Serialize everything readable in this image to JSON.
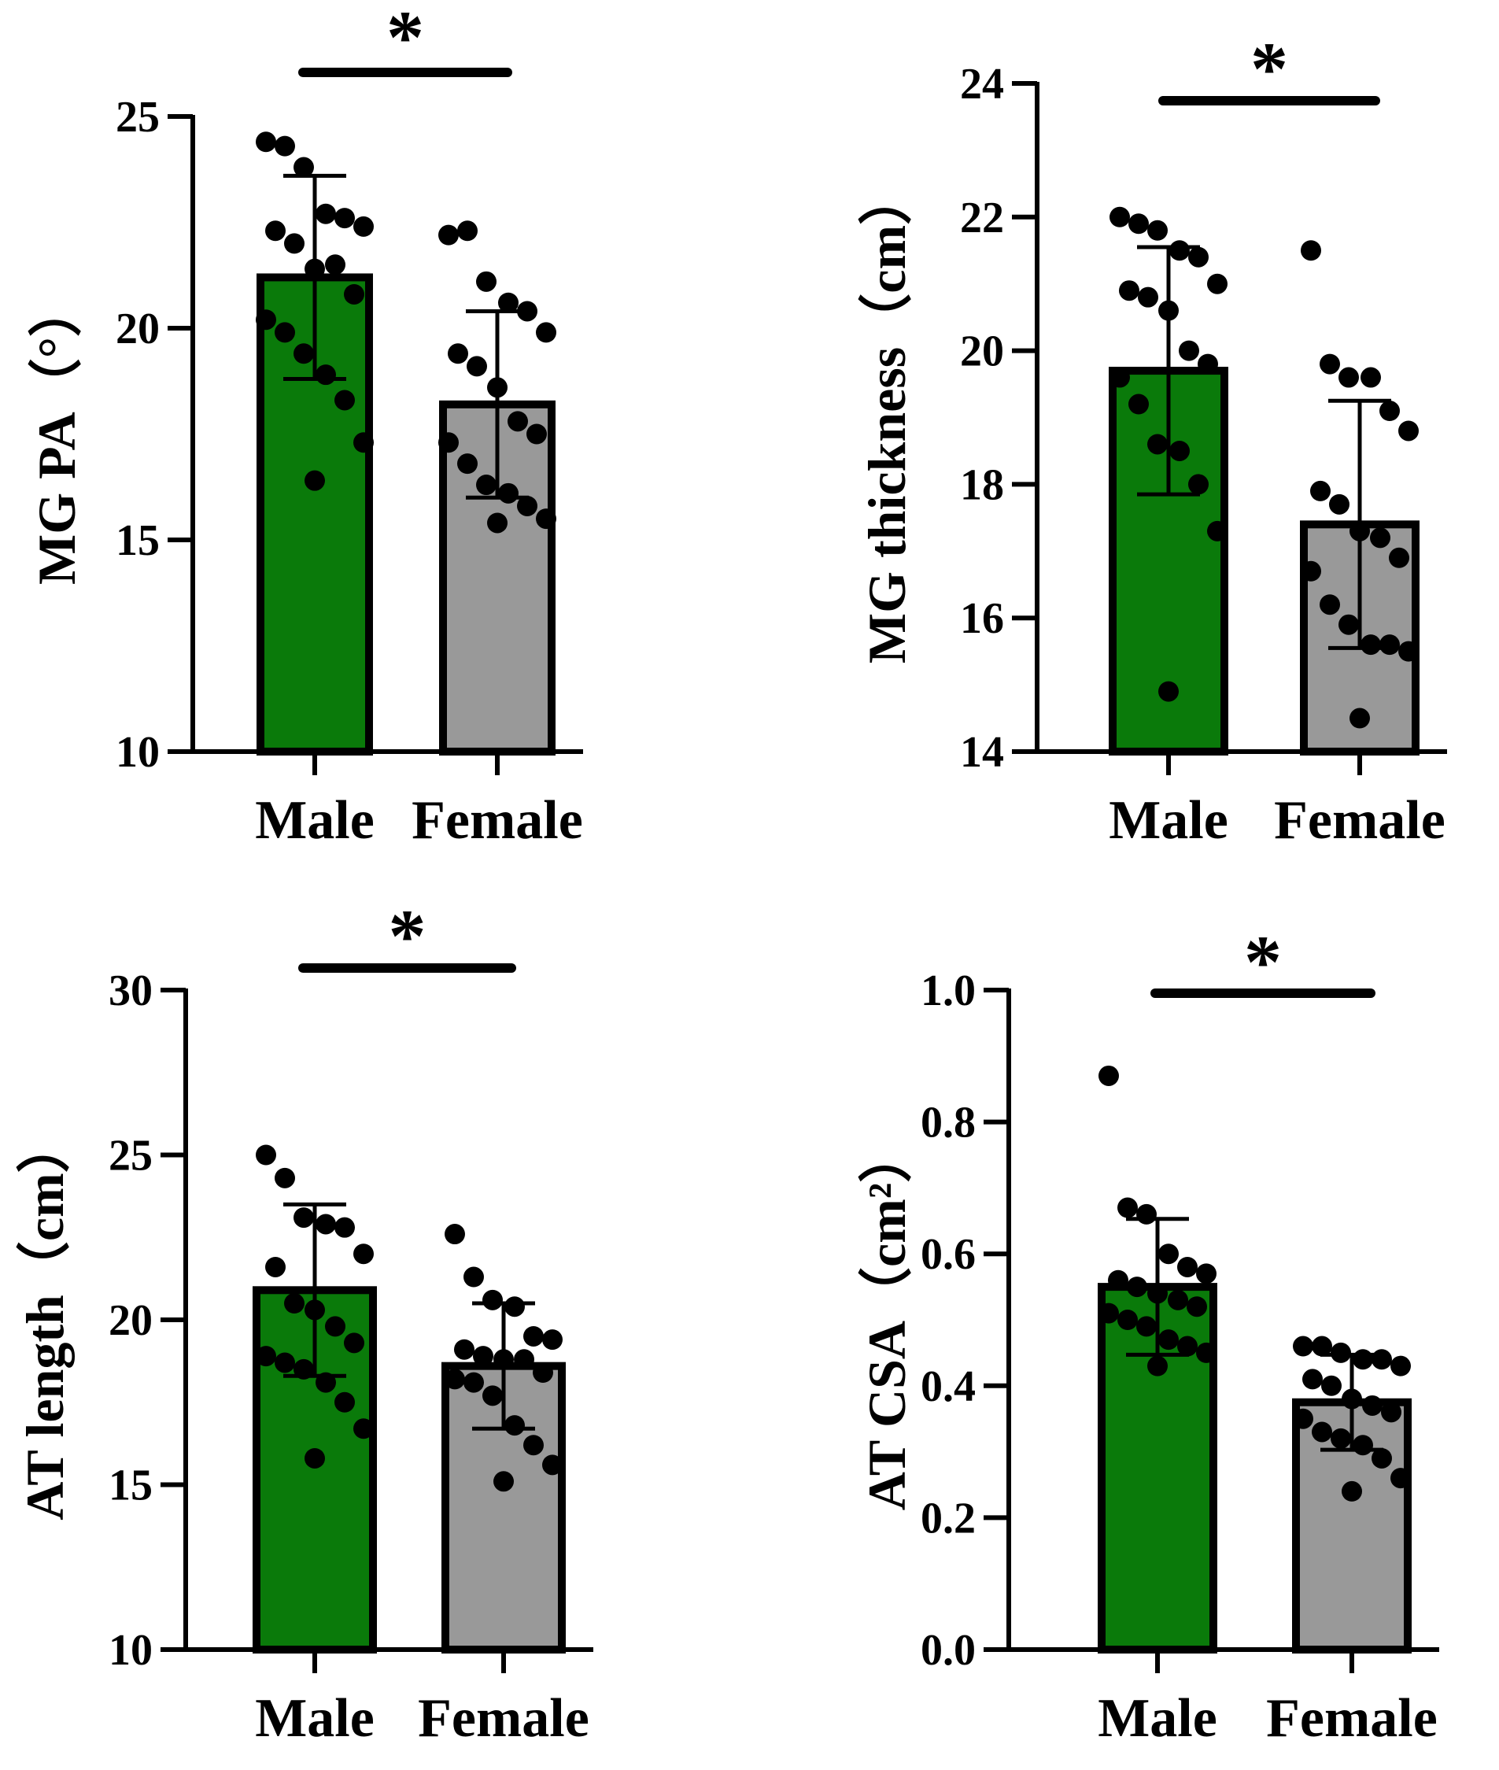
{
  "chart_data": [
    {
      "type": "bar",
      "categories": [
        "Male",
        "Female"
      ],
      "ylabel": "MG PA（°）",
      "ylim": [
        10,
        25
      ],
      "yticks": [
        "10",
        "15",
        "20",
        "25"
      ],
      "values": [
        21.2,
        18.2
      ],
      "error": [
        2.4,
        2.2
      ],
      "colors": [
        "#0a7a0a",
        "#999999"
      ],
      "significance": "*",
      "points": [
        [
          24.4,
          24.3,
          23.8,
          22.7,
          22.6,
          22.4,
          22.3,
          22.0,
          21.4,
          21.5,
          20.8,
          20.2,
          19.9,
          19.4,
          18.9,
          18.3,
          17.3,
          16.4
        ],
        [
          22.2,
          22.3,
          21.1,
          20.6,
          20.4,
          19.9,
          19.4,
          19.1,
          18.6,
          17.8,
          17.5,
          17.3,
          16.8,
          16.3,
          16.1,
          15.8,
          15.5,
          15.4
        ]
      ]
    },
    {
      "type": "bar",
      "categories": [
        "Male",
        "Female"
      ],
      "ylabel": "MG thickness（cm）",
      "ylim": [
        14,
        24
      ],
      "yticks": [
        "14",
        "16",
        "18",
        "20",
        "22",
        "24"
      ],
      "values": [
        19.7,
        17.4
      ],
      "error": [
        1.85,
        1.85
      ],
      "colors": [
        "#0a7a0a",
        "#999999"
      ],
      "significance": "*",
      "points": [
        [
          22.0,
          21.9,
          21.8,
          21.5,
          21.4,
          21.0,
          20.9,
          20.8,
          20.6,
          20.0,
          19.8,
          19.6,
          19.2,
          18.6,
          18.5,
          18.0,
          17.3,
          14.9
        ],
        [
          21.5,
          19.8,
          19.6,
          19.6,
          19.1,
          18.8,
          17.9,
          17.7,
          17.3,
          17.2,
          16.9,
          16.7,
          16.2,
          15.9,
          15.6,
          15.6,
          15.5,
          14.5
        ]
      ]
    },
    {
      "type": "bar",
      "categories": [
        "Male",
        "Female"
      ],
      "ylabel": "AT length（cm）",
      "ylim": [
        10,
        30
      ],
      "yticks": [
        "10",
        "15",
        "20",
        "25",
        "30"
      ],
      "values": [
        20.9,
        18.6
      ],
      "error": [
        2.6,
        1.9
      ],
      "colors": [
        "#0a7a0a",
        "#999999"
      ],
      "significance": "*",
      "points": [
        [
          25.0,
          24.3,
          23.1,
          22.9,
          22.8,
          22.0,
          21.6,
          20.5,
          20.3,
          19.8,
          19.3,
          18.9,
          18.7,
          18.5,
          18.1,
          17.5,
          16.7,
          15.8
        ],
        [
          22.6,
          21.3,
          20.6,
          20.4,
          19.5,
          19.4,
          19.1,
          18.9,
          18.8,
          18.8,
          18.4,
          18.2,
          18.1,
          17.7,
          16.8,
          16.2,
          15.6,
          15.1
        ]
      ]
    },
    {
      "type": "bar",
      "categories": [
        "Male",
        "Female"
      ],
      "ylabel": "AT CSA（cm²）",
      "ylim": [
        0.0,
        1.0
      ],
      "yticks": [
        "0.0",
        "0.2",
        "0.4",
        "0.6",
        "0.8",
        "1.0"
      ],
      "values": [
        0.55,
        0.375
      ],
      "error": [
        0.103,
        0.072
      ],
      "colors": [
        "#0a7a0a",
        "#999999"
      ],
      "significance": "*",
      "points": [
        [
          0.87,
          0.67,
          0.66,
          0.6,
          0.58,
          0.57,
          0.56,
          0.55,
          0.54,
          0.53,
          0.52,
          0.51,
          0.5,
          0.49,
          0.47,
          0.46,
          0.45,
          0.43
        ],
        [
          0.46,
          0.46,
          0.45,
          0.44,
          0.44,
          0.43,
          0.41,
          0.4,
          0.38,
          0.37,
          0.36,
          0.35,
          0.33,
          0.32,
          0.31,
          0.29,
          0.26,
          0.24
        ]
      ]
    }
  ]
}
